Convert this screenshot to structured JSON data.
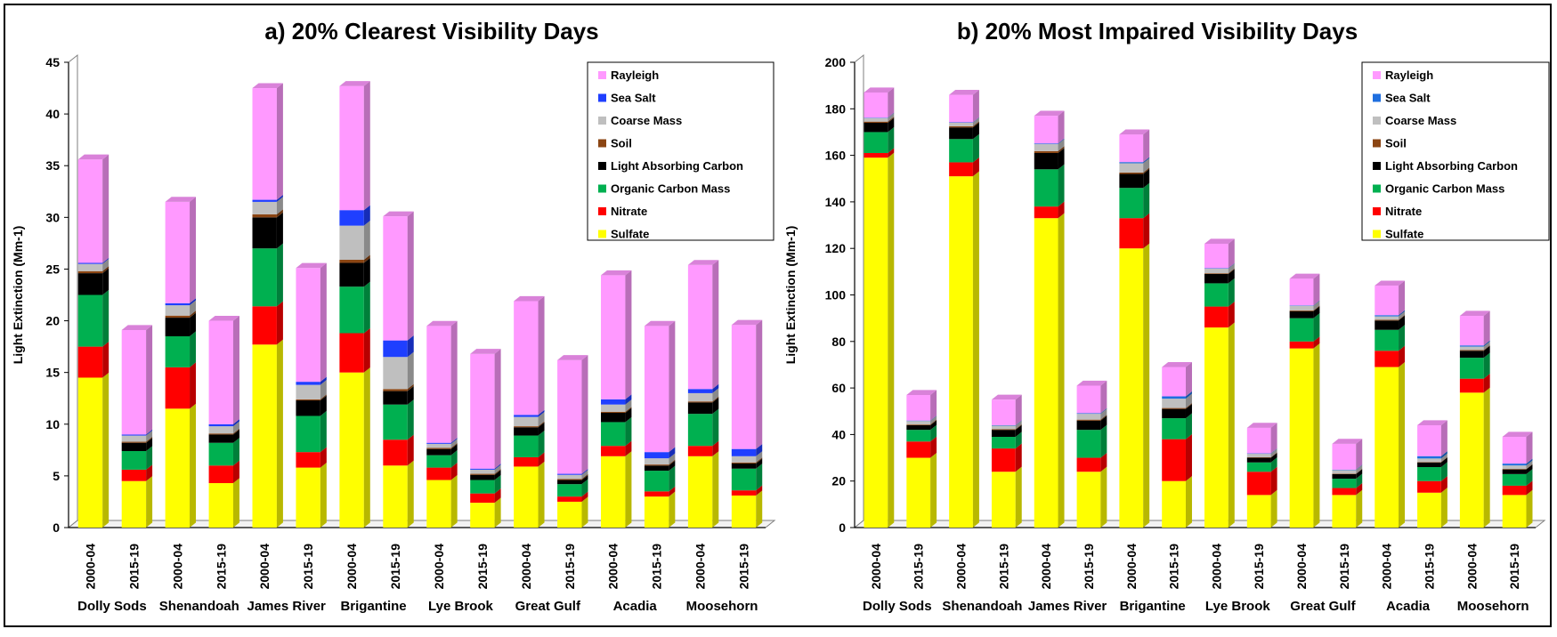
{
  "chart_data": [
    {
      "type": "bar",
      "stacked": true,
      "title": "a) 20% Clearest Visibility Days",
      "ylabel": "Light Extinction (Mm-1)",
      "xlabel": "",
      "ylim": [
        0,
        45
      ],
      "yticks": [
        0,
        5,
        10,
        15,
        20,
        25,
        30,
        35,
        40,
        45
      ],
      "grid": false,
      "legend_position": "top-right",
      "categories": [
        "2000-04",
        "2015-19",
        "2000-04",
        "2015-19",
        "2000-04",
        "2015-19",
        "2000-04",
        "2015-19",
        "2000-04",
        "2015-19",
        "2000-04",
        "2015-19",
        "2000-04",
        "2015-19",
        "2000-04",
        "2015-19"
      ],
      "sites": [
        "Dolly Sods",
        "Shenandoah",
        "James River",
        "Brigantine",
        "Lye Brook",
        "Great Gulf",
        "Acadia",
        "Moosehorn"
      ],
      "series": [
        {
          "name": "Sulfate",
          "color": "#FFFF00",
          "values": [
            14.5,
            4.5,
            11.5,
            4.3,
            17.7,
            5.8,
            15.0,
            6.0,
            4.6,
            2.4,
            5.9,
            2.5,
            6.9,
            3.0,
            6.9,
            3.1
          ]
        },
        {
          "name": "Nitrate",
          "color": "#FF0000",
          "values": [
            3.0,
            1.1,
            4.0,
            1.7,
            3.7,
            1.5,
            3.8,
            2.5,
            1.2,
            0.9,
            0.9,
            0.5,
            1.0,
            0.5,
            1.0,
            0.5
          ]
        },
        {
          "name": "Organic Carbon Mass",
          "color": "#00B050",
          "values": [
            5.0,
            1.8,
            3.0,
            2.2,
            5.6,
            3.5,
            4.5,
            3.4,
            1.2,
            1.3,
            2.1,
            1.2,
            2.3,
            2.0,
            3.1,
            2.1
          ]
        },
        {
          "name": "Light Absorbing Carbon",
          "color": "#000000",
          "values": [
            2.1,
            0.8,
            1.8,
            0.8,
            3.0,
            1.5,
            2.3,
            1.3,
            0.6,
            0.5,
            0.8,
            0.4,
            0.9,
            0.5,
            1.1,
            0.5
          ]
        },
        {
          "name": "Soil",
          "color": "#8B4513",
          "values": [
            0.2,
            0.1,
            0.2,
            0.1,
            0.3,
            0.1,
            0.3,
            0.2,
            0.1,
            0.1,
            0.1,
            0.1,
            0.1,
            0.1,
            0.1,
            0.1
          ]
        },
        {
          "name": "Coarse Mass",
          "color": "#BFBFBF",
          "values": [
            0.7,
            0.6,
            1.0,
            0.7,
            1.2,
            1.4,
            3.3,
            3.1,
            0.4,
            0.4,
            0.9,
            0.4,
            0.7,
            0.6,
            0.8,
            0.6
          ]
        },
        {
          "name": "Sea Salt",
          "color": "#1F3FFF",
          "values": [
            0.1,
            0.1,
            0.2,
            0.2,
            0.2,
            0.3,
            1.5,
            1.6,
            0.1,
            0.1,
            0.2,
            0.1,
            0.5,
            0.6,
            0.4,
            0.7
          ]
        },
        {
          "name": "Rayleigh",
          "color": "#FF99FF",
          "values": [
            10.0,
            10.1,
            9.8,
            10.0,
            10.8,
            11.0,
            12.0,
            12.0,
            11.3,
            11.1,
            11.0,
            11.0,
            12.0,
            12.2,
            12.0,
            12.0
          ]
        }
      ]
    },
    {
      "type": "bar",
      "stacked": true,
      "title": "b) 20% Most Impaired Visibility Days",
      "ylabel": "Light Extinction (Mm-1)",
      "xlabel": "",
      "ylim": [
        0,
        200
      ],
      "yticks": [
        0,
        20,
        40,
        60,
        80,
        100,
        120,
        140,
        160,
        180,
        200
      ],
      "grid": false,
      "legend_position": "top-right",
      "categories": [
        "2000-04",
        "2015-19",
        "2000-04",
        "2015-19",
        "2000-04",
        "2015-19",
        "2000-04",
        "2015-19",
        "2000-04",
        "2015-19",
        "2000-04",
        "2015-19",
        "2000-04",
        "2015-19",
        "2000-04",
        "2015-19"
      ],
      "sites": [
        "Dolly Sods",
        "Shenandoah",
        "James River",
        "Brigantine",
        "Lye Brook",
        "Great Gulf",
        "Acadia",
        "Moosehorn"
      ],
      "series": [
        {
          "name": "Sulfate",
          "color": "#FFFF00",
          "values": [
            159,
            30,
            151,
            24,
            133,
            24,
            120,
            20,
            86,
            14,
            77,
            14,
            69,
            15,
            58,
            14
          ]
        },
        {
          "name": "Nitrate",
          "color": "#FF0000",
          "values": [
            2,
            7,
            6,
            10,
            5,
            6,
            13,
            18,
            9,
            10,
            3,
            3,
            7,
            5,
            6,
            4
          ]
        },
        {
          "name": "Organic Carbon Mass",
          "color": "#00B050",
          "values": [
            9,
            5,
            10,
            5,
            16,
            12,
            13,
            9,
            10,
            4,
            10,
            4,
            9,
            6,
            9,
            5
          ]
        },
        {
          "name": "Light Absorbing Carbon",
          "color": "#000000",
          "values": [
            4,
            2,
            5,
            3,
            7,
            4,
            6,
            4,
            4,
            2,
            3,
            2,
            4,
            2,
            3,
            2
          ]
        },
        {
          "name": "Soil",
          "color": "#8B4513",
          "values": [
            0.5,
            0.3,
            0.5,
            0.3,
            0.8,
            0.4,
            0.6,
            0.4,
            0.3,
            0.2,
            0.3,
            0.2,
            0.3,
            0.2,
            0.3,
            0.2
          ]
        },
        {
          "name": "Coarse Mass",
          "color": "#BFBFBF",
          "values": [
            1.5,
            1.5,
            1.5,
            1.5,
            3.0,
            2.5,
            4.0,
            4.0,
            2.0,
            1.5,
            2.0,
            1.5,
            1.5,
            1.5,
            1.5,
            1.5
          ]
        },
        {
          "name": "Sea Salt",
          "color": "#1F6FDF",
          "values": [
            0.2,
            0.2,
            0.2,
            0.2,
            0.3,
            0.3,
            0.5,
            1.0,
            0.2,
            0.2,
            0.2,
            0.2,
            0.5,
            1.0,
            0.5,
            0.8
          ]
        },
        {
          "name": "Rayleigh",
          "color": "#FF99FF",
          "values": [
            10.8,
            11.0,
            11.8,
            11.0,
            11.9,
            11.8,
            11.9,
            12.6,
            10.5,
            11.0,
            11.5,
            11.1,
            12.7,
            13.3,
            12.7,
            11.5
          ]
        }
      ]
    }
  ]
}
